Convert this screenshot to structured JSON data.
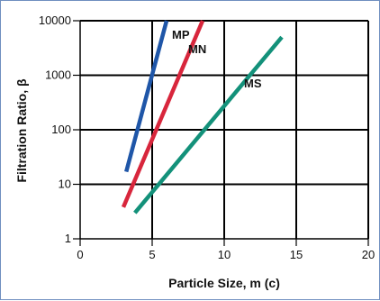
{
  "chart_data": {
    "type": "line",
    "xlabel": "Particle Size, m (c)",
    "ylabel": "Filtration Ratio, β",
    "xlim": [
      0,
      20
    ],
    "ylim": [
      1,
      10000
    ],
    "yscale": "log",
    "grid": true,
    "x_ticks": [
      0,
      5,
      10,
      15,
      20
    ],
    "x_tick_labels": [
      "0",
      "5",
      "10",
      "15",
      "20"
    ],
    "y_ticks": [
      1,
      10,
      100,
      1000,
      10000
    ],
    "y_tick_labels": [
      "1",
      "10",
      "100",
      "1000",
      "10000"
    ],
    "series": [
      {
        "name": "MP",
        "color": "#1f56a8",
        "x": [
          3.2,
          6.0
        ],
        "y": [
          17,
          10000
        ]
      },
      {
        "name": "MN",
        "color": "#d8263c",
        "x": [
          3.0,
          8.5
        ],
        "y": [
          3.8,
          10000
        ]
      },
      {
        "name": "MS",
        "color": "#13917a",
        "x": [
          3.8,
          14.0
        ],
        "y": [
          3.0,
          5000
        ]
      }
    ]
  }
}
